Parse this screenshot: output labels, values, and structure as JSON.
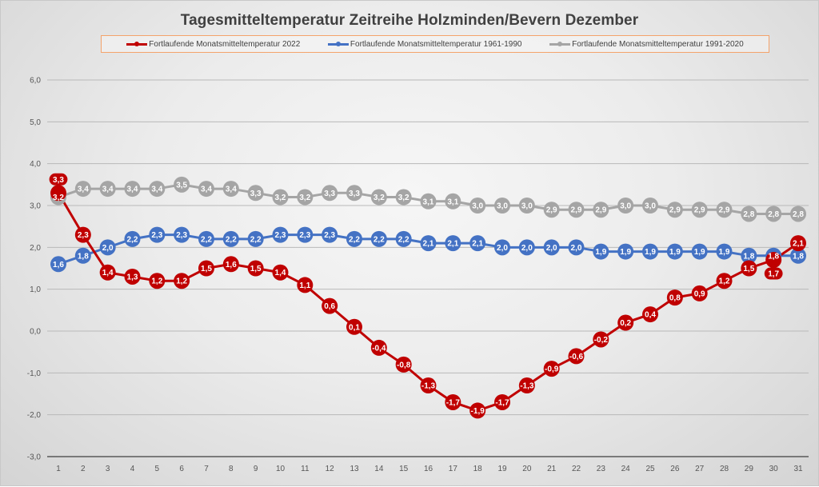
{
  "chart_data": {
    "type": "line",
    "title": "Tagesmitteltemperatur Zeitreihe Holzminden/Bevern Dezember",
    "xlabel": "",
    "ylabel": "",
    "x": [
      1,
      2,
      3,
      4,
      5,
      6,
      7,
      8,
      9,
      10,
      11,
      12,
      13,
      14,
      15,
      16,
      17,
      18,
      19,
      20,
      21,
      22,
      23,
      24,
      25,
      26,
      27,
      28,
      29,
      30,
      31
    ],
    "ylim": [
      -3.0,
      6.0
    ],
    "yticks": [
      -3.0,
      -2.0,
      -1.0,
      0.0,
      1.0,
      2.0,
      3.0,
      4.0,
      5.0,
      6.0
    ],
    "ytick_labels": [
      "-3,0",
      "-2,0",
      "-1,0",
      "0,0",
      "1,0",
      "2,0",
      "3,0",
      "4,0",
      "5,0",
      "6,0"
    ],
    "grid": true,
    "legend_position": "top",
    "series": [
      {
        "name": "Fortlaufende Monatsmitteltemperatur 1991-2020",
        "color": "#a5a5a5",
        "values": [
          3.2,
          3.4,
          3.4,
          3.4,
          3.4,
          3.5,
          3.4,
          3.4,
          3.3,
          3.2,
          3.2,
          3.3,
          3.3,
          3.2,
          3.2,
          3.1,
          3.1,
          3.0,
          3.0,
          3.0,
          2.9,
          2.9,
          2.9,
          3.0,
          3.0,
          2.9,
          2.9,
          2.9,
          2.8,
          2.8,
          2.8
        ]
      },
      {
        "name": "Fortlaufende Monatsmitteltemperatur 1961-1990",
        "color": "#4472c4",
        "values": [
          1.6,
          1.8,
          2.0,
          2.2,
          2.3,
          2.3,
          2.2,
          2.2,
          2.2,
          2.3,
          2.3,
          2.3,
          2.2,
          2.2,
          2.2,
          2.1,
          2.1,
          2.1,
          2.0,
          2.0,
          2.0,
          2.0,
          1.9,
          1.9,
          1.9,
          1.9,
          1.9,
          1.9,
          1.8,
          1.8,
          1.8
        ]
      },
      {
        "name": "Fortlaufende Monatsmitteltemperatur 2022",
        "color": "#c00000",
        "values": [
          3.3,
          2.3,
          1.4,
          1.3,
          1.2,
          1.2,
          1.5,
          1.6,
          1.5,
          1.4,
          1.1,
          0.6,
          0.1,
          -0.4,
          -0.8,
          -1.3,
          -1.7,
          -1.9,
          -1.7,
          -1.3,
          -0.9,
          -0.6,
          -0.2,
          0.2,
          0.4,
          0.8,
          0.9,
          1.2,
          1.5,
          1.7,
          2.1
        ]
      }
    ],
    "legend_order": [
      2,
      1,
      0
    ]
  }
}
